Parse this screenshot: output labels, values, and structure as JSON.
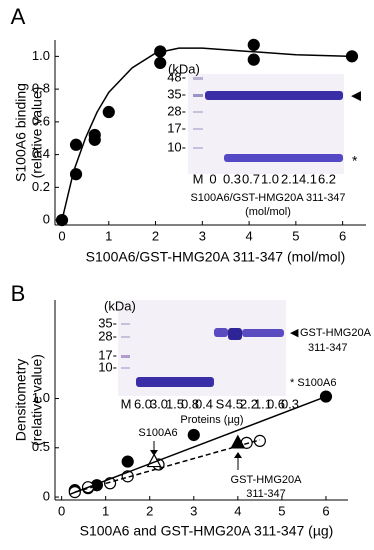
{
  "chart_data": [
    {
      "type": "scatter",
      "panel_label": "A",
      "xlabel": "S100A6/GST-HMG20A 311-347 (mol/mol)",
      "ylabel": [
        "S100A6 binding",
        "(relative value)"
      ],
      "xlim": [
        -0.15,
        6.5
      ],
      "ylim": [
        -0.03,
        1.1
      ],
      "xticks": [
        0,
        1,
        2,
        3,
        4,
        5,
        6
      ],
      "yticks": [
        0,
        0.2,
        0.4,
        0.6,
        0.8,
        {
          "value": 1,
          "label": "1.0"
        }
      ],
      "series": [
        {
          "color": "#000000",
          "marker": "circle",
          "filled": true,
          "line": false,
          "x": [
            0,
            0.3,
            0.3,
            0.7,
            0.7,
            1.0,
            2.1,
            2.1,
            4.1,
            4.1,
            6.2
          ],
          "values": [
            0,
            0.28,
            0.46,
            0.49,
            0.52,
            0.66,
            0.96,
            1.03,
            0.98,
            1.07,
            1.0
          ]
        },
        {
          "color": "#000000",
          "marker": "none",
          "filled": false,
          "line": true,
          "dashed": false,
          "x": [
            0,
            0.25,
            0.5,
            0.75,
            1,
            1.5,
            2,
            2.5,
            3,
            4,
            5,
            6.2
          ],
          "values": [
            0,
            0.3,
            0.5,
            0.66,
            0.78,
            0.93,
            1.02,
            1.05,
            1.05,
            1.03,
            1.01,
            1.0
          ]
        }
      ],
      "inset": {
        "kda": "(kDa)",
        "markers": [
          "48-",
          "35-",
          "28-",
          "17-",
          "10-"
        ],
        "lanes": [
          "M",
          "0",
          "0.3",
          "0.7",
          "1.0",
          "2.1",
          "4.1",
          "6.2"
        ],
        "arrow": "◀",
        "star": "*",
        "caption": [
          "S100A6/GST-HMG20A 311-347",
          "(mol/mol)"
        ]
      }
    },
    {
      "type": "scatter",
      "panel_label": "B",
      "xlabel": "S100A6 and GST-HMG20A 311-347 (µg)",
      "ylabel": [
        "Densitometry",
        "(relative value)"
      ],
      "xlim": [
        -0.15,
        6.5
      ],
      "ylim": [
        -0.03,
        2.0
      ],
      "xticks": [
        0,
        1,
        2,
        3,
        4,
        5,
        6
      ],
      "yticks": [
        0,
        0.5,
        {
          "value": 1,
          "label": "1.0"
        }
      ],
      "series": [
        {
          "color": "#000000",
          "marker": "circle",
          "filled": true,
          "line": false,
          "x": [
            0.3,
            0.6,
            0.8,
            1.5,
            3.0,
            6.0
          ],
          "values": [
            0.07,
            0.09,
            0.12,
            0.36,
            0.63,
            1.02
          ]
        },
        {
          "color": "#000000",
          "marker": "circle",
          "filled": false,
          "line": false,
          "x": [
            0.3,
            0.6,
            1.1,
            1.5,
            2.2,
            4.2,
            4.5
          ],
          "values": [
            0.05,
            0.1,
            0.14,
            0.21,
            0.33,
            0.55,
            0.57
          ]
        },
        {
          "color": "#000000",
          "marker": "triangle",
          "filled": false,
          "line": false,
          "x": [
            2.1
          ],
          "values": [
            0.36
          ]
        },
        {
          "color": "#000000",
          "marker": "triangle",
          "filled": true,
          "line": false,
          "x": [
            4.0
          ],
          "values": [
            0.55
          ]
        },
        {
          "color": "#000000",
          "marker": "none",
          "filled": false,
          "line": true,
          "dashed": false,
          "x": [
            0.2,
            6.0
          ],
          "values": [
            0.03,
            1.02
          ]
        },
        {
          "color": "#000000",
          "marker": "none",
          "filled": false,
          "line": true,
          "dashed": true,
          "x": [
            0.3,
            4.5
          ],
          "values": [
            0.05,
            0.58
          ]
        }
      ],
      "annotations": {
        "s100a6": "S100A6",
        "proteins": "Proteins (µg)",
        "gst": [
          "GST-HMG20A",
          "311-347"
        ]
      },
      "inset": {
        "kda": "(kDa)",
        "markers": [
          "35-",
          "28-",
          "17-",
          "10-"
        ],
        "lanes": [
          "M",
          "6.0",
          "3.0",
          "1.5",
          "0.8",
          "0.4",
          "S",
          "4.5",
          "2.2",
          "1.1",
          "0.6",
          "0.3"
        ],
        "arrow": "◀",
        "right_label": [
          "GST-HMG20A",
          "311-347"
        ],
        "star_label": "* S100A6"
      }
    }
  ]
}
